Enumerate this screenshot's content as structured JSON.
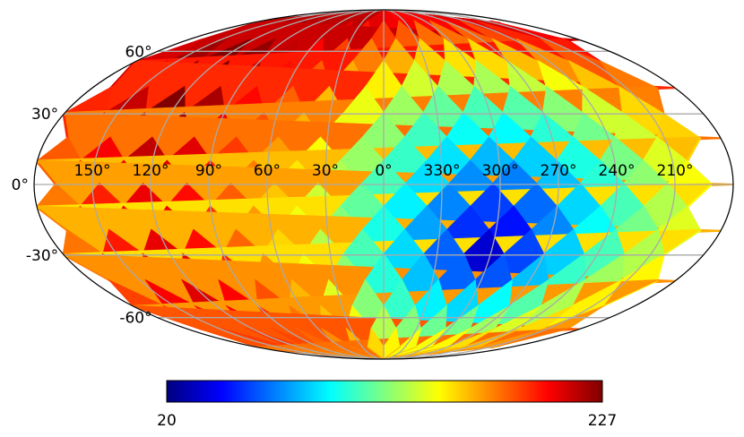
{
  "chart_data": {
    "type": "heatmap",
    "projection": "mollweide",
    "grid": true,
    "grid_color": "#aaaaaa",
    "colormap": "jet",
    "colorbar": {
      "min": 20,
      "max": 227,
      "min_label": "20",
      "max_label": "227"
    },
    "lon_tick_labels": [
      "150°",
      "120°",
      "90°",
      "60°",
      "30°",
      "0°",
      "330°",
      "300°",
      "270°",
      "240°",
      "210°"
    ],
    "lat_tick_labels": [
      "60°",
      "30°",
      "0°",
      "-30°",
      "-60°"
    ],
    "lon_ticks": [
      150,
      120,
      90,
      60,
      30,
      0,
      330,
      300,
      270,
      240,
      210
    ],
    "lat_ticks": [
      60,
      30,
      0,
      -30,
      -60
    ],
    "field": {
      "description_values": "pixelized sky map, value range 20-227",
      "low_center": {
        "lon": 300,
        "lat": -30,
        "value": 20
      },
      "high_spots": [
        {
          "lon": 0,
          "lat": 90,
          "value": 227
        },
        {
          "lon": 120,
          "lat": -55,
          "value": 220
        },
        {
          "lon": 240,
          "lat": -80,
          "value": 200
        }
      ]
    }
  }
}
